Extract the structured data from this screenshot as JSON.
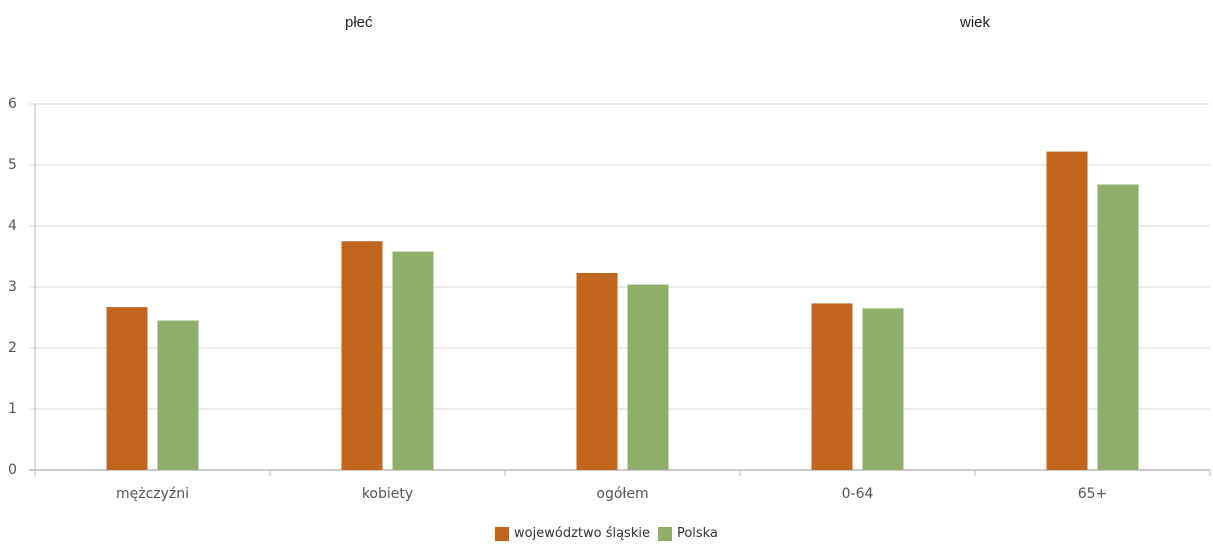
{
  "headers": {
    "left": "płeć",
    "right": "wiek"
  },
  "chart_data": {
    "type": "bar",
    "categories": [
      "mężczyźni",
      "kobiety",
      "ogółem",
      "0-64",
      "65+"
    ],
    "series": [
      {
        "name": "województwo śląskie",
        "color": "#c0641e",
        "values": [
          2.67,
          3.75,
          3.23,
          2.73,
          5.22
        ]
      },
      {
        "name": "Polska",
        "color": "#8fae69",
        "values": [
          2.45,
          3.58,
          3.04,
          2.65,
          4.68
        ]
      }
    ],
    "ylim": [
      0,
      6
    ],
    "yticks": [
      "0",
      "1",
      "2",
      "3",
      "4",
      "5",
      "6"
    ],
    "grid": true,
    "legend": "bottom-center"
  }
}
